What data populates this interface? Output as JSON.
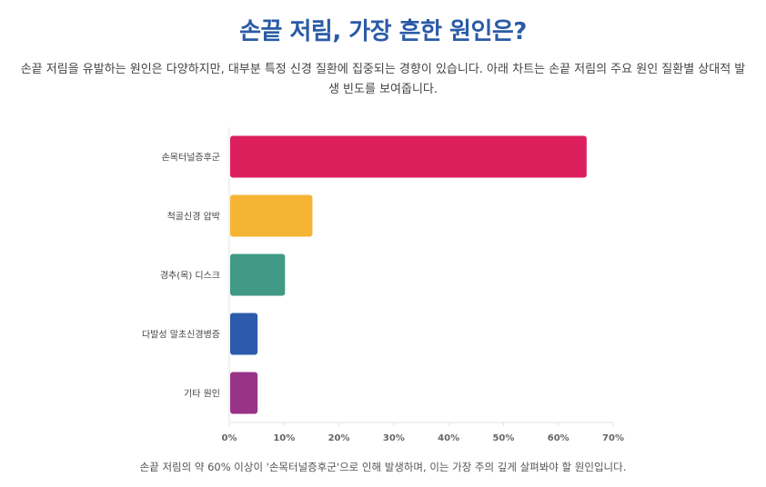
{
  "header": {
    "title": "손끝 저림, 가장 흔한 원인은?",
    "subtitle": "손끝 저림을 유발하는 원인은 다양하지만, 대부분 특정 신경 질환에 집중되는 경향이 있습니다. 아래 차트는 손끝 저림의 주요 원인 질환별 상대적 발생 빈도를 보여줍니다."
  },
  "chart_data": {
    "type": "bar",
    "orientation": "horizontal",
    "categories": [
      "손목터널증후군",
      "척골신경 압박",
      "경추(목) 디스크",
      "다발성 말초신경병증",
      "기타 원인"
    ],
    "values": [
      65,
      15,
      10,
      5,
      5
    ],
    "colors": [
      "#dc1f5c",
      "#f5b434",
      "#419a85",
      "#2b5baa",
      "#983388"
    ],
    "xlim": [
      0,
      70
    ],
    "xticks": [
      "0%",
      "10%",
      "20%",
      "30%",
      "40%",
      "50%",
      "60%",
      "70%"
    ],
    "grid": false,
    "legend": "none"
  },
  "footer": {
    "note": "손끝 저림의 약 60% 이상이 '손목터널증후군'으로 인해 발생하며, 이는 가장 주의 깊게 살펴봐야 할 원인입니다."
  }
}
